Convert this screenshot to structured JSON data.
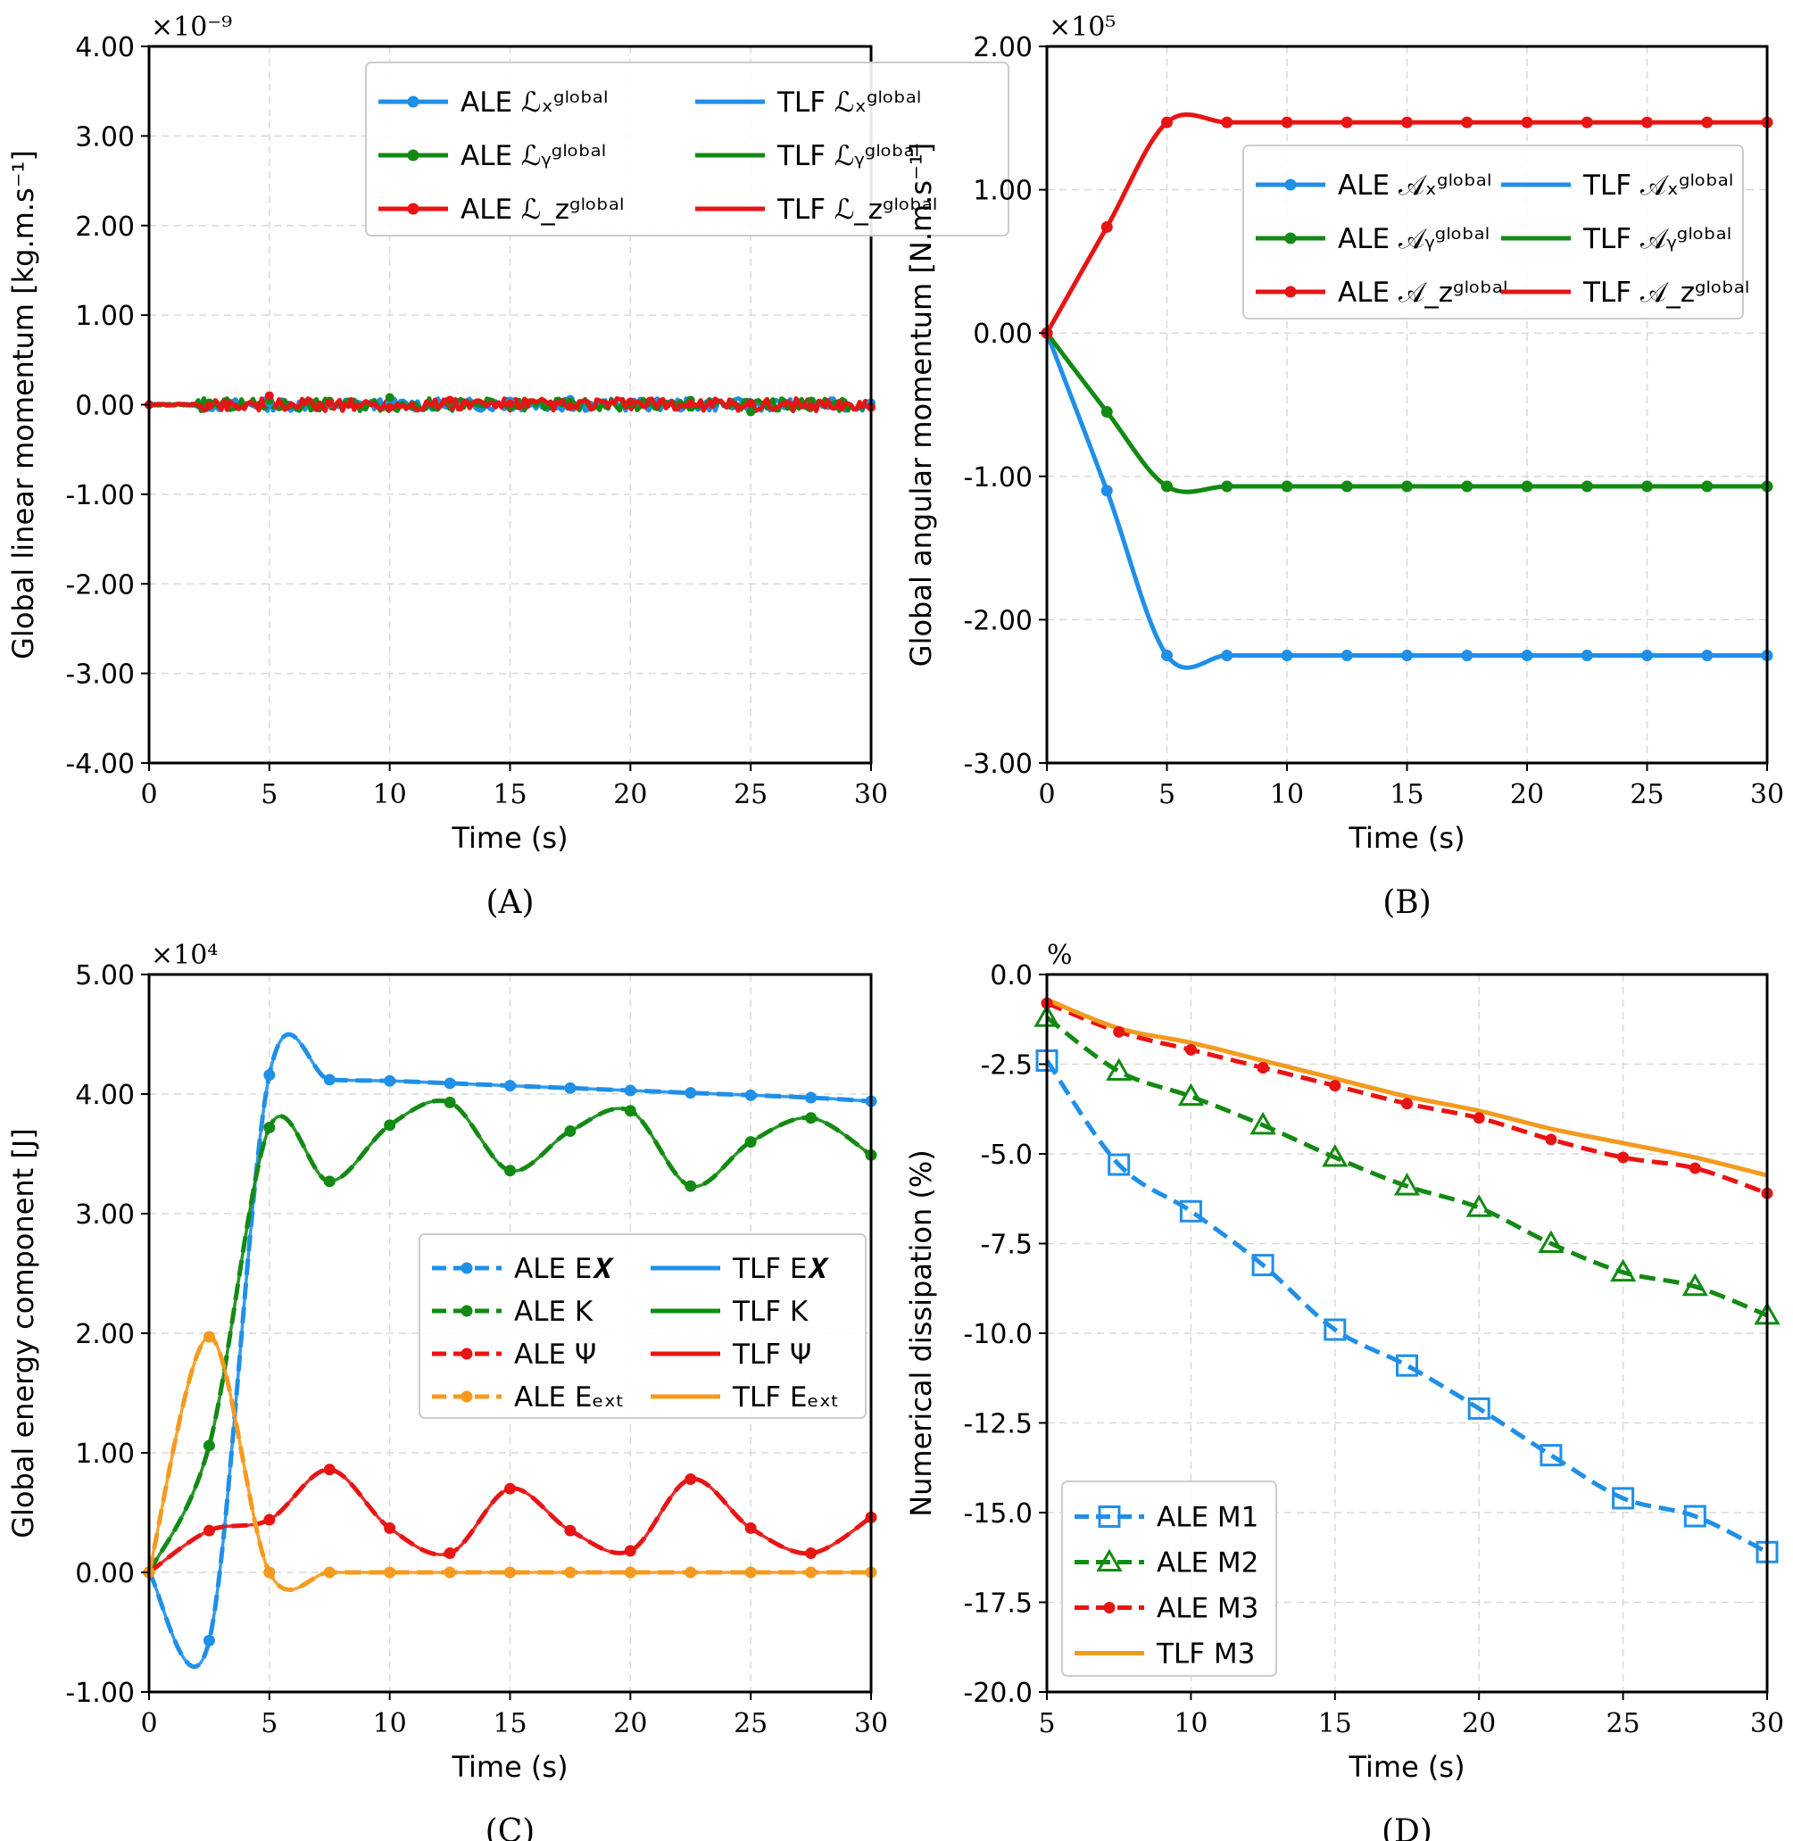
{
  "chart_data": [
    {
      "panel": "(A)",
      "type": "line",
      "xlabel": "Time (s)",
      "ylabel": "Global linear momentum [kg.m.s⁻¹]",
      "multiplier": "×10⁻⁹",
      "xlim": [
        0,
        30
      ],
      "ylim": [
        -4,
        4
      ],
      "xticks": [
        "0",
        "5",
        "10",
        "15",
        "20",
        "25",
        "30"
      ],
      "yticks": [
        "4.00",
        "3.00",
        "2.00",
        "1.00",
        "0.00",
        "-1.00",
        "-2.00",
        "-3.00",
        "-4.00"
      ],
      "grid": true,
      "legend_position": "top-right",
      "series": [
        {
          "name": "ALE ℒₓᵍˡᵒᵇᵃˡ",
          "color": "#1f8fe8",
          "style": "solid-marker",
          "x": [
            0,
            2.5,
            5,
            7.5,
            10,
            12.5,
            15,
            17.5,
            20,
            22.5,
            25,
            27.5,
            30
          ],
          "y": [
            0,
            0.01,
            0.02,
            0.01,
            0.02,
            0.03,
            0.04,
            0.06,
            0.02,
            0.01,
            0.02,
            0.03,
            0.02
          ]
        },
        {
          "name": "ALE ℒᵧᵍˡᵒᵇᵃˡ",
          "color": "#138a13",
          "style": "solid-marker",
          "x": [
            0,
            2.5,
            5,
            7.5,
            10,
            12.5,
            15,
            17.5,
            20,
            22.5,
            25,
            27.5,
            30
          ],
          "y": [
            0,
            0.02,
            0.05,
            0.04,
            0.08,
            0.03,
            -0.02,
            0.03,
            0.02,
            0.05,
            -0.08,
            0.04,
            -0.02
          ]
        },
        {
          "name": "ALE ℒ_zᵍˡᵒᵇᵃˡ",
          "color": "#e81414",
          "style": "solid-marker",
          "x": [
            0,
            2.5,
            5,
            7.5,
            10,
            12.5,
            15,
            17.5,
            20,
            22.5,
            25,
            27.5,
            30
          ],
          "y": [
            0,
            -0.01,
            0.1,
            0.02,
            -0.03,
            0.05,
            0.01,
            -0.02,
            0.03,
            0.01,
            0.02,
            -0.02,
            -0.03
          ]
        },
        {
          "name": "TLF ℒₓᵍˡᵒᵇᵃˡ",
          "color": "#1f8fe8",
          "style": "solid"
        },
        {
          "name": "TLF ℒᵧᵍˡᵒᵇᵃˡ",
          "color": "#138a13",
          "style": "solid"
        },
        {
          "name": "TLF ℒ_zᵍˡᵒᵇᵃˡ",
          "color": "#e81414",
          "style": "solid"
        }
      ]
    },
    {
      "panel": "(B)",
      "type": "line",
      "xlabel": "Time (s)",
      "ylabel": "Global angular momentum [N.m.s⁻¹]",
      "multiplier": "×10⁵",
      "xlim": [
        0,
        30
      ],
      "ylim": [
        -3,
        2
      ],
      "xticks": [
        "0",
        "5",
        "10",
        "15",
        "20",
        "25",
        "30"
      ],
      "yticks": [
        "2.00",
        "1.00",
        "0.00",
        "-1.00",
        "-2.00",
        "-3.00"
      ],
      "grid": true,
      "legend_position": "upper-right",
      "series": [
        {
          "name": "ALE 𝒜ₓᵍˡᵒᵇᵃˡ",
          "color": "#1f8fe8",
          "style": "solid-marker",
          "x": [
            0,
            2.5,
            5,
            7.5,
            10,
            12.5,
            15,
            17.5,
            20,
            22.5,
            25,
            27.5,
            30
          ],
          "y": [
            0,
            -1.1,
            -2.25,
            -2.25,
            -2.25,
            -2.25,
            -2.25,
            -2.25,
            -2.25,
            -2.25,
            -2.25,
            -2.25,
            -2.25
          ]
        },
        {
          "name": "ALE 𝒜ᵧᵍˡᵒᵇᵃˡ",
          "color": "#138a13",
          "style": "solid-marker",
          "x": [
            0,
            2.5,
            5,
            7.5,
            10,
            12.5,
            15,
            17.5,
            20,
            22.5,
            25,
            27.5,
            30
          ],
          "y": [
            0,
            -0.55,
            -1.07,
            -1.07,
            -1.07,
            -1.07,
            -1.07,
            -1.07,
            -1.07,
            -1.07,
            -1.07,
            -1.07,
            -1.07
          ]
        },
        {
          "name": "ALE 𝒜_zᵍˡᵒᵇᵃˡ",
          "color": "#e81414",
          "style": "solid-marker",
          "x": [
            0,
            2.5,
            5,
            7.5,
            10,
            12.5,
            15,
            17.5,
            20,
            22.5,
            25,
            27.5,
            30
          ],
          "y": [
            0,
            0.74,
            1.47,
            1.47,
            1.47,
            1.47,
            1.47,
            1.47,
            1.47,
            1.47,
            1.47,
            1.47,
            1.47
          ]
        },
        {
          "name": "TLF 𝒜ₓᵍˡᵒᵇᵃˡ",
          "color": "#1f8fe8",
          "style": "solid"
        },
        {
          "name": "TLF 𝒜ᵧᵍˡᵒᵇᵃˡ",
          "color": "#138a13",
          "style": "solid"
        },
        {
          "name": "TLF 𝒜_zᵍˡᵒᵇᵃˡ",
          "color": "#e81414",
          "style": "solid"
        }
      ]
    },
    {
      "panel": "(C)",
      "type": "line",
      "xlabel": "Time (s)",
      "ylabel": "Global energy component [J]",
      "multiplier": "×10⁴",
      "xlim": [
        0,
        30
      ],
      "ylim": [
        -1,
        5
      ],
      "xticks": [
        "0",
        "5",
        "10",
        "15",
        "20",
        "25",
        "30"
      ],
      "yticks": [
        "5.00",
        "4.00",
        "3.00",
        "2.00",
        "1.00",
        "0.00",
        "-1.00"
      ],
      "grid": true,
      "legend_position": "center-right",
      "series": [
        {
          "name": "ALE E𝑿",
          "color": "#1f8fe8",
          "style": "dashed-marker",
          "x": [
            0,
            2.5,
            5,
            7.5,
            10,
            12.5,
            15,
            17.5,
            20,
            22.5,
            25,
            27.5,
            30
          ],
          "y": [
            0,
            -0.57,
            4.16,
            4.12,
            4.11,
            4.09,
            4.07,
            4.05,
            4.03,
            4.01,
            3.99,
            3.97,
            3.94
          ]
        },
        {
          "name": "ALE K",
          "color": "#138a13",
          "style": "dashed-marker",
          "x": [
            0,
            2.5,
            5,
            7.5,
            10,
            12.5,
            15,
            17.5,
            20,
            22.5,
            25,
            27.5,
            30
          ],
          "y": [
            0,
            1.06,
            3.72,
            3.27,
            3.74,
            3.93,
            3.36,
            3.69,
            3.86,
            3.23,
            3.6,
            3.8,
            3.49
          ]
        },
        {
          "name": "ALE Ψ",
          "color": "#e81414",
          "style": "dashed-marker",
          "x": [
            0,
            2.5,
            5,
            7.5,
            10,
            12.5,
            15,
            17.5,
            20,
            22.5,
            25,
            27.5,
            30
          ],
          "y": [
            0,
            0.35,
            0.44,
            0.86,
            0.37,
            0.16,
            0.7,
            0.35,
            0.18,
            0.78,
            0.37,
            0.16,
            0.46
          ]
        },
        {
          "name": "ALE Eₑₓₜ",
          "color": "#f59a1e",
          "style": "dashed-marker",
          "x": [
            0,
            2.5,
            5,
            7.5,
            10,
            12.5,
            15,
            17.5,
            20,
            22.5,
            25,
            27.5,
            30
          ],
          "y": [
            0,
            1.97,
            0,
            0,
            0,
            0,
            0,
            0,
            0,
            0,
            0,
            0,
            0
          ]
        },
        {
          "name": "TLF E𝑿",
          "color": "#1f8fe8",
          "style": "solid"
        },
        {
          "name": "TLF K",
          "color": "#138a13",
          "style": "solid"
        },
        {
          "name": "TLF Ψ",
          "color": "#e81414",
          "style": "solid"
        },
        {
          "name": "TLF Eₑₓₜ",
          "color": "#f59a1e",
          "style": "solid"
        }
      ]
    },
    {
      "panel": "(D)",
      "type": "line",
      "xlabel": "Time (s)",
      "ylabel": "Numerical dissipation (%)",
      "multiplier": "%",
      "xlim": [
        5,
        30
      ],
      "ylim": [
        -20,
        0
      ],
      "xticks": [
        "5",
        "10",
        "15",
        "20",
        "25",
        "30"
      ],
      "yticks": [
        "0.0",
        "-2.5",
        "-5.0",
        "-7.5",
        "-10.0",
        "-12.5",
        "-15.0",
        "-17.5",
        "-20.0"
      ],
      "grid": true,
      "legend_position": "lower-left",
      "series": [
        {
          "name": "ALE M1",
          "color": "#1f8fe8",
          "style": "dashed-square",
          "x": [
            5,
            7.5,
            10,
            12.5,
            15,
            17.5,
            20,
            22.5,
            25,
            27.5,
            30
          ],
          "y": [
            -2.4,
            -5.3,
            -6.6,
            -8.1,
            -9.9,
            -10.9,
            -12.1,
            -13.4,
            -14.6,
            -15.1,
            -16.1
          ]
        },
        {
          "name": "ALE M2",
          "color": "#138a13",
          "style": "dashed-triangle",
          "x": [
            5,
            7.5,
            10,
            12.5,
            15,
            17.5,
            20,
            22.5,
            25,
            27.5,
            30
          ],
          "y": [
            -1.2,
            -2.7,
            -3.4,
            -4.2,
            -5.1,
            -5.9,
            -6.5,
            -7.5,
            -8.3,
            -8.7,
            -9.5
          ]
        },
        {
          "name": "ALE M3",
          "color": "#e81414",
          "style": "dashed-dot",
          "x": [
            5,
            7.5,
            10,
            12.5,
            15,
            17.5,
            20,
            22.5,
            25,
            27.5,
            30
          ],
          "y": [
            -0.8,
            -1.6,
            -2.1,
            -2.6,
            -3.1,
            -3.6,
            -4.0,
            -4.6,
            -5.1,
            -5.4,
            -6.1
          ]
        },
        {
          "name": "TLF M3",
          "color": "#f59a1e",
          "style": "solid",
          "x": [
            5,
            7.5,
            10,
            12.5,
            15,
            17.5,
            20,
            22.5,
            25,
            27.5,
            30
          ],
          "y": [
            -0.7,
            -1.5,
            -1.9,
            -2.4,
            -2.9,
            -3.4,
            -3.8,
            -4.3,
            -4.7,
            -5.1,
            -5.6
          ]
        }
      ]
    }
  ]
}
